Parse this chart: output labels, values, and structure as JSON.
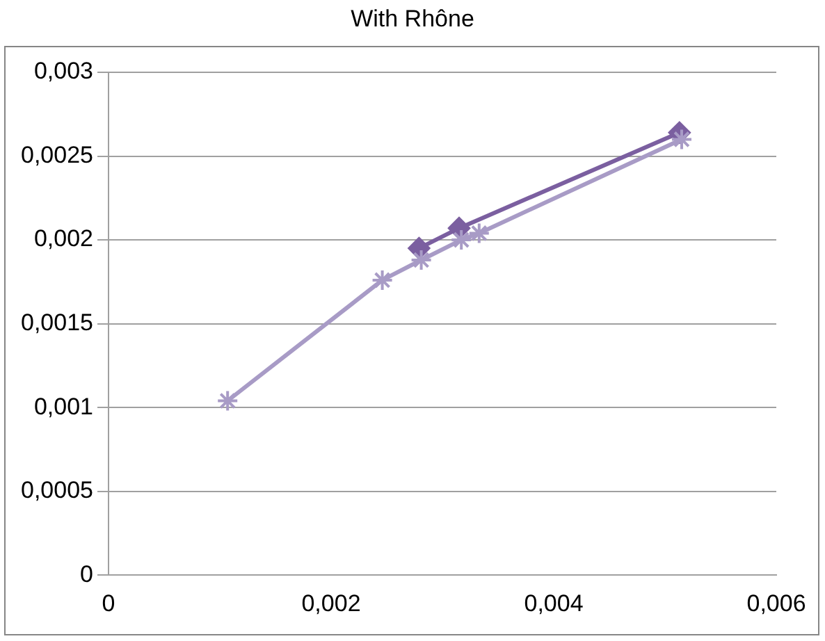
{
  "chart_data": {
    "type": "line",
    "title": "With Rhône",
    "xlim": [
      0,
      0.006
    ],
    "xticks": [
      {
        "value": 0,
        "label": "0"
      },
      {
        "value": 0.002,
        "label": "0,002"
      },
      {
        "value": 0.004,
        "label": "0,004"
      },
      {
        "value": 0.006,
        "label": "0,006"
      }
    ],
    "ylim": [
      0,
      0.003
    ],
    "yticks": [
      {
        "value": 0,
        "label": "0"
      },
      {
        "value": 0.0005,
        "label": "0,0005"
      },
      {
        "value": 0.001,
        "label": "0,001"
      },
      {
        "value": 0.0015,
        "label": "0,0015"
      },
      {
        "value": 0.002,
        "label": "0,002"
      },
      {
        "value": 0.0025,
        "label": "0,0025"
      },
      {
        "value": 0.003,
        "label": "0,003"
      }
    ],
    "grid": "y",
    "legend": false,
    "series": [
      {
        "color": "#7b5fa0",
        "marker": "diamond",
        "x": [
          0.00279,
          0.00315,
          0.00513
        ],
        "values": [
          0.00195,
          0.00207,
          0.00264
        ]
      },
      {
        "color": "#a89bc6",
        "marker": "cross",
        "x": [
          0.00107,
          0.00246,
          0.00281,
          0.00317,
          0.00333,
          0.00515
        ],
        "values": [
          0.00104,
          0.00176,
          0.00188,
          0.002,
          0.00204,
          0.0026
        ]
      }
    ]
  }
}
